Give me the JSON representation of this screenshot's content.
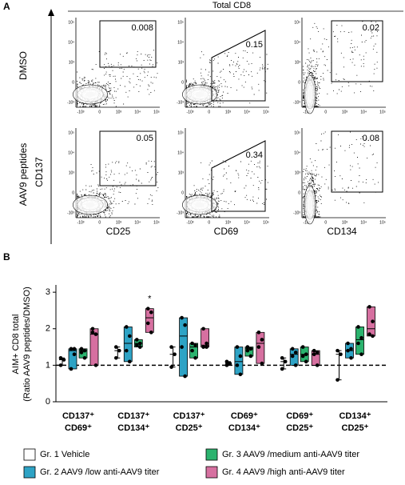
{
  "panel_a": {
    "label": "A",
    "title": "Total CD8",
    "y_axis": "CD137",
    "rows": [
      "DMSO",
      "AAV9 peptides"
    ],
    "columns": [
      "CD25",
      "CD69",
      "CD134"
    ],
    "gates": [
      [
        "0.008",
        "0.15",
        "0.02"
      ],
      [
        "0.05",
        "0.34",
        "0.08"
      ]
    ],
    "yticks": [
      "10⁵",
      "10⁴",
      "10³",
      "0",
      "-10³"
    ],
    "xticks": [
      "-10³",
      "0",
      "10³",
      "10⁴",
      "10⁵"
    ]
  },
  "chart_data": {
    "type": "box",
    "panel_label": "B",
    "ylabel": [
      "AIM+ CD8 total",
      "(Ratio AAV9 peptides/DMSO)"
    ],
    "categories": [
      [
        "CD137⁺",
        "CD69⁺"
      ],
      [
        "CD137⁺",
        "CD134⁺"
      ],
      [
        "CD137⁺",
        "CD25⁺"
      ],
      [
        "CD69⁺",
        "CD134⁺"
      ],
      [
        "CD69⁺",
        "CD25⁺"
      ],
      [
        "CD134⁺",
        "CD25⁺"
      ]
    ],
    "ylim": [
      0,
      3.2
    ],
    "yticks": [
      0,
      1,
      2,
      3
    ],
    "reference_line": 1,
    "annotations": [
      {
        "text": "*",
        "category": 1,
        "series": 3
      }
    ],
    "series": [
      {
        "name": "Gr. 1 Vehicle",
        "color": "#ffffff",
        "boxes": [
          [
            1.0,
            1.15,
            1.2
          ],
          [
            1.2,
            1.4,
            1.5
          ],
          [
            0.95,
            1.3,
            1.5
          ],
          [
            1.0,
            1.05,
            1.1
          ],
          [
            0.9,
            1.1,
            1.2
          ],
          [
            0.6,
            1.3,
            1.4
          ]
        ],
        "points": [
          [
            1.2,
            1.15,
            1.0
          ],
          [
            1.5,
            1.4,
            1.2
          ],
          [
            1.5,
            1.3,
            0.95
          ],
          [
            1.1,
            1.05,
            1.0
          ],
          [
            1.2,
            1.1,
            0.9
          ],
          [
            1.4,
            1.3,
            0.6
          ]
        ]
      },
      {
        "name": "Gr. 2 AAV9 /low anti-AAV9 titer",
        "color": "#2ea3c5",
        "boxes": [
          [
            0.9,
            1.4,
            1.45
          ],
          [
            1.1,
            1.6,
            2.05
          ],
          [
            0.7,
            1.8,
            2.3
          ],
          [
            0.75,
            1.1,
            1.5
          ],
          [
            1.0,
            1.3,
            1.45
          ],
          [
            1.2,
            1.4,
            1.6
          ]
        ],
        "points": [
          [
            1.45,
            1.45,
            0.9,
            1.3
          ],
          [
            2.05,
            1.8,
            1.4,
            1.1
          ],
          [
            2.3,
            2.1,
            1.5,
            0.7
          ],
          [
            1.5,
            1.25,
            1.0,
            0.75
          ],
          [
            1.45,
            1.35,
            1.25,
            1.0
          ],
          [
            1.6,
            1.45,
            1.4,
            1.2
          ]
        ]
      },
      {
        "name": "Gr. 3 AAV9 /medium anti-AAV9 titer",
        "color": "#2bb36e",
        "boxes": [
          [
            1.2,
            1.4,
            1.45
          ],
          [
            1.5,
            1.6,
            1.7
          ],
          [
            1.2,
            1.5,
            1.6
          ],
          [
            1.25,
            1.45,
            1.5
          ],
          [
            1.1,
            1.3,
            1.5
          ],
          [
            1.3,
            1.7,
            2.05
          ]
        ],
        "points": [
          [
            1.45,
            1.4,
            1.35,
            1.2
          ],
          [
            1.7,
            1.6,
            1.55,
            1.5
          ],
          [
            1.6,
            1.55,
            1.4,
            1.2
          ],
          [
            1.5,
            1.45,
            1.4,
            1.25
          ],
          [
            1.5,
            1.3,
            1.25,
            1.1
          ],
          [
            2.05,
            1.75,
            1.6,
            1.3
          ]
        ]
      },
      {
        "name": "Gr. 4 AAV9 /high anti-AAV9 titer",
        "color": "#d670a0",
        "boxes": [
          [
            1.0,
            1.85,
            2.0
          ],
          [
            1.9,
            2.3,
            2.55
          ],
          [
            1.5,
            1.55,
            2.0
          ],
          [
            1.05,
            1.6,
            1.9
          ],
          [
            1.0,
            1.3,
            1.4
          ],
          [
            1.8,
            2.0,
            2.6
          ]
        ],
        "points": [
          [
            2.0,
            1.85,
            1.9,
            1.0
          ],
          [
            2.55,
            2.45,
            2.15,
            1.9
          ],
          [
            2.0,
            1.6,
            1.5,
            1.5
          ],
          [
            1.9,
            1.7,
            1.5,
            1.05
          ],
          [
            1.4,
            1.35,
            1.3,
            1.0
          ],
          [
            2.6,
            2.2,
            1.85,
            1.8
          ]
        ]
      }
    ]
  }
}
